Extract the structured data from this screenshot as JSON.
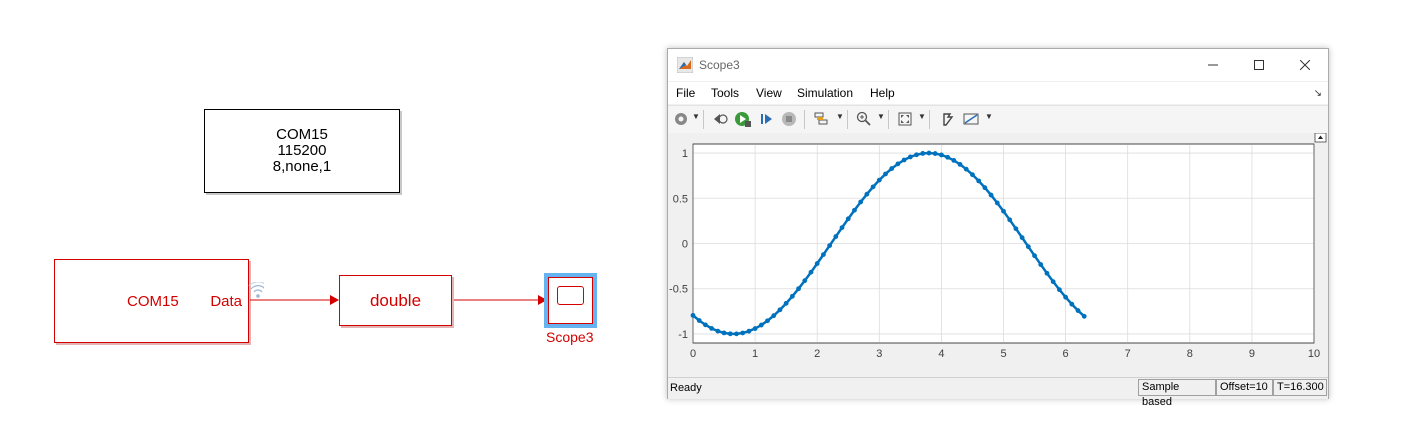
{
  "diagram": {
    "config_block": {
      "line1": "COM15",
      "line2": "115200",
      "line3": "8,none,1"
    },
    "receive_block": {
      "port_name": "COM15",
      "output_port": "Data"
    },
    "convert_block": {
      "label": "double"
    },
    "scope_block": {
      "label": "Scope3"
    }
  },
  "scope_window": {
    "title": "Scope3",
    "menu": [
      "File",
      "Tools",
      "View",
      "Simulation",
      "Help"
    ],
    "toolbar_icons": [
      "settings-icon",
      "step-back-icon",
      "run-icon",
      "step-forward-icon",
      "stop-icon",
      "highlight-icon",
      "zoom-in-icon",
      "fit-to-view-icon",
      "style-icon",
      "measure-icon"
    ],
    "status": {
      "ready": "Ready",
      "mode": "Sample based",
      "offset": "Offset=10",
      "time": "T=16.300"
    }
  },
  "chart_data": {
    "type": "line",
    "xlim": [
      0,
      10
    ],
    "ylim": [
      -1.1,
      1.1
    ],
    "x_ticks": [
      "0",
      "1",
      "2",
      "3",
      "4",
      "5",
      "6",
      "7",
      "8",
      "9",
      "10"
    ],
    "y_ticks": [
      "1",
      "0.5",
      "0",
      "-0.5",
      "-1"
    ],
    "grid": true,
    "series": [
      {
        "color": "#0072bd",
        "marker": "dot",
        "x_start": 0,
        "x_end": 6.3,
        "x_step": 0.1,
        "function": "sin(x + 4.06)"
      }
    ]
  }
}
